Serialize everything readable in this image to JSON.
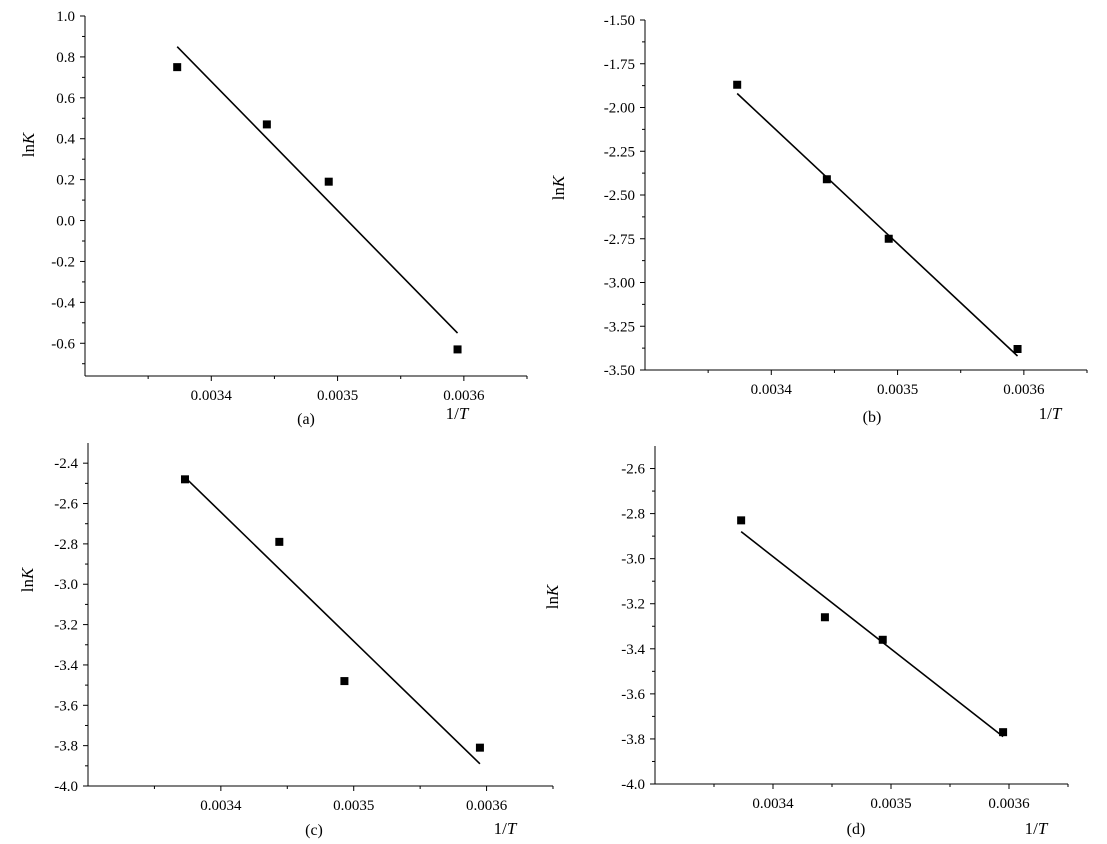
{
  "chart_data": [
    {
      "type": "scatter",
      "panel_label": "(a)",
      "xlabel": "1/T",
      "ylabel": "lnK",
      "xlim": [
        0.0033,
        0.00365
      ],
      "ylim": [
        -0.76,
        1.0
      ],
      "xticks": [
        0.0034,
        0.0035,
        0.0036
      ],
      "xtick_labels": [
        "0.0034",
        "0.0035",
        "0.0036"
      ],
      "yticks": [
        1.0,
        0.8,
        0.6,
        0.4,
        0.2,
        0.0,
        -0.2,
        -0.4,
        -0.6
      ],
      "ytick_labels": [
        "1.0",
        "0.8",
        "0.6",
        "0.4",
        "0.2",
        "0.0",
        "-0.2",
        "-0.4",
        "-0.6"
      ],
      "points": [
        {
          "x": 0.003373,
          "y": 0.75
        },
        {
          "x": 0.003444,
          "y": 0.47
        },
        {
          "x": 0.003493,
          "y": 0.19
        },
        {
          "x": 0.003595,
          "y": -0.63
        }
      ],
      "fit_line": [
        {
          "x": 0.003373,
          "y": 0.85
        },
        {
          "x": 0.003595,
          "y": -0.55
        }
      ]
    },
    {
      "type": "scatter",
      "panel_label": "(b)",
      "xlabel": "1/T",
      "ylabel": "lnK",
      "xlim": [
        0.0033,
        0.00365
      ],
      "ylim": [
        -3.5,
        -1.5
      ],
      "xticks": [
        0.0034,
        0.0035,
        0.0036
      ],
      "xtick_labels": [
        "0.0034",
        "0.0035",
        "0.0036"
      ],
      "yticks": [
        -1.5,
        -1.75,
        -2.0,
        -2.25,
        -2.5,
        -2.75,
        -3.0,
        -3.25,
        -3.5
      ],
      "ytick_labels": [
        "-1.50",
        "-1.75",
        "-2.00",
        "-2.25",
        "-2.50",
        "-2.75",
        "-3.00",
        "-3.25",
        "-3.50"
      ],
      "points": [
        {
          "x": 0.003373,
          "y": -1.87
        },
        {
          "x": 0.003444,
          "y": -2.41
        },
        {
          "x": 0.003493,
          "y": -2.75
        },
        {
          "x": 0.003595,
          "y": -3.38
        }
      ],
      "fit_line": [
        {
          "x": 0.003373,
          "y": -1.92
        },
        {
          "x": 0.003595,
          "y": -3.42
        }
      ]
    },
    {
      "type": "scatter",
      "panel_label": "(c)",
      "xlabel": "1/T",
      "ylabel": "lnK",
      "xlim": [
        0.0033,
        0.00365
      ],
      "ylim": [
        -4.0,
        -2.3
      ],
      "xticks": [
        0.0034,
        0.0035,
        0.0036
      ],
      "xtick_labels": [
        "0.0034",
        "0.0035",
        "0.0036"
      ],
      "yticks": [
        -2.4,
        -2.6,
        -2.8,
        -3.0,
        -3.2,
        -3.4,
        -3.6,
        -3.8,
        -4.0
      ],
      "ytick_labels": [
        "-2.4",
        "-2.6",
        "-2.8",
        "-3.0",
        "-3.2",
        "-3.4",
        "-3.6",
        "-3.8",
        "-4.0"
      ],
      "points": [
        {
          "x": 0.003373,
          "y": -2.48
        },
        {
          "x": 0.003444,
          "y": -2.79
        },
        {
          "x": 0.003493,
          "y": -3.48
        },
        {
          "x": 0.003595,
          "y": -3.81
        }
      ],
      "fit_line": [
        {
          "x": 0.003373,
          "y": -2.47
        },
        {
          "x": 0.003595,
          "y": -3.89
        }
      ]
    },
    {
      "type": "scatter",
      "panel_label": "(d)",
      "xlabel": "1/T",
      "ylabel": "lnK",
      "xlim": [
        0.0033,
        0.00365
      ],
      "ylim": [
        -4.0,
        -2.5
      ],
      "xticks": [
        0.0034,
        0.0035,
        0.0036
      ],
      "xtick_labels": [
        "0.0034",
        "0.0035",
        "0.0036"
      ],
      "yticks": [
        -2.6,
        -2.8,
        -3.0,
        -3.2,
        -3.4,
        -3.6,
        -3.8,
        -4.0
      ],
      "ytick_labels": [
        "-2.6",
        "-2.8",
        "-3.0",
        "-3.2",
        "-3.4",
        "-3.6",
        "-3.8",
        "-4.0"
      ],
      "points": [
        {
          "x": 0.003373,
          "y": -2.83
        },
        {
          "x": 0.003444,
          "y": -3.26
        },
        {
          "x": 0.003493,
          "y": -3.36
        },
        {
          "x": 0.003595,
          "y": -3.77
        }
      ],
      "fit_line": [
        {
          "x": 0.003373,
          "y": -2.88
        },
        {
          "x": 0.003595,
          "y": -3.79
        }
      ]
    }
  ]
}
